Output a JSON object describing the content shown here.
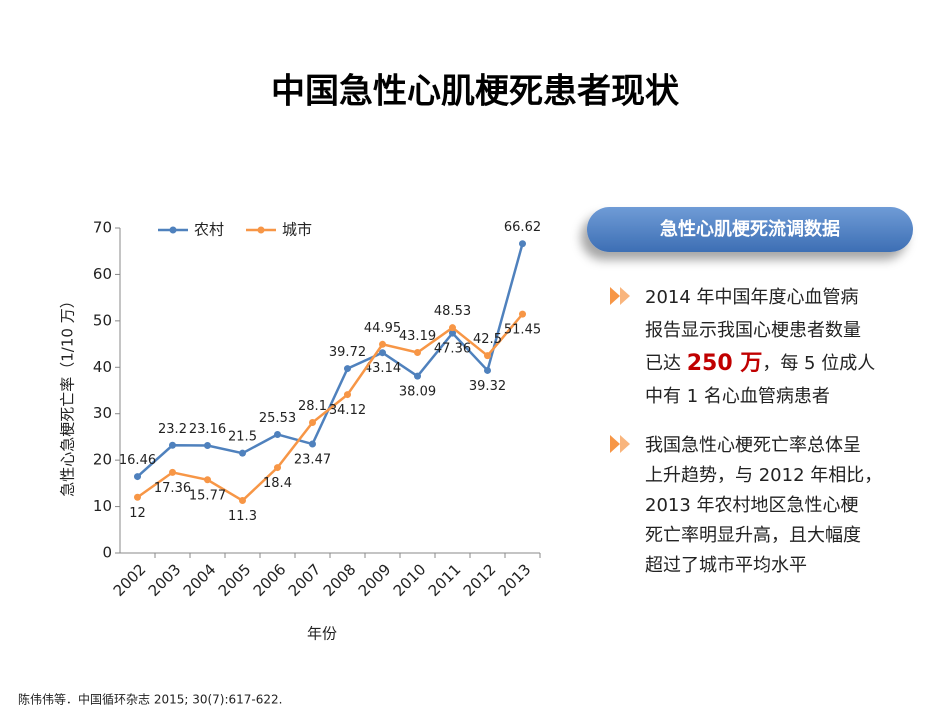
{
  "title": "中国急性心肌梗死患者现状",
  "chart_data": {
    "type": "line",
    "x_label": "年份",
    "y_label": "急性心急梗死亡率（1/10 万）",
    "categories": [
      "2002",
      "2003",
      "2004",
      "2005",
      "2006",
      "2007",
      "2008",
      "2009",
      "2010",
      "2011",
      "2012",
      "2013"
    ],
    "series": [
      {
        "name": "农村",
        "color": "#4f81bd",
        "values": [
          16.46,
          23.2,
          23.16,
          21.5,
          25.53,
          23.47,
          39.72,
          43.14,
          38.09,
          47.36,
          39.32,
          66.62
        ]
      },
      {
        "name": "城市",
        "color": "#f79646",
        "values": [
          12,
          17.36,
          15.77,
          11.3,
          18.4,
          28.1,
          34.12,
          44.95,
          43.19,
          48.53,
          42.5,
          51.45
        ]
      }
    ],
    "ylim": [
      0,
      70
    ],
    "yticks": [
      0,
      10,
      20,
      30,
      40,
      50,
      60,
      70
    ],
    "grid": false,
    "legend": "top"
  },
  "panel": {
    "header": "急性心肌梗死流调数据",
    "bullets": [
      [
        "2014 年中国年度心血管病",
        "报告显示我国心梗患者数量",
        [
          "已达 ",
          "250 万",
          "，每 5 位成人"
        ],
        "中有 1 名心血管病患者"
      ],
      [
        "我国急性心梗死亡率总体呈",
        "上升趋势，与 2012 年相比，",
        "2013 年农村地区急性心梗",
        "死亡率明显升高，且大幅度",
        "超过了城市平均水平"
      ]
    ]
  },
  "footnote": "陈伟伟等．中国循环杂志  2015; 30(7):617-622."
}
